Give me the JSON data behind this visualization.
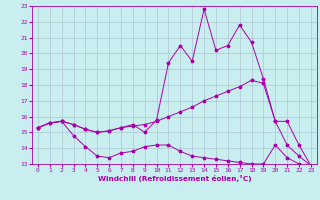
{
  "xlabel": "Windchill (Refroidissement éolien,°C)",
  "xlim": [
    -0.5,
    23.5
  ],
  "ylim": [
    13,
    23
  ],
  "yticks": [
    13,
    14,
    15,
    16,
    17,
    18,
    19,
    20,
    21,
    22,
    23
  ],
  "xticks": [
    0,
    1,
    2,
    3,
    4,
    5,
    6,
    7,
    8,
    9,
    10,
    11,
    12,
    13,
    14,
    15,
    16,
    17,
    18,
    19,
    20,
    21,
    22,
    23
  ],
  "bg_color": "#c8eef0",
  "line_color": "#aa00aa",
  "grid_color": "#aabbcc",
  "series": [
    {
      "x": [
        0,
        1,
        2,
        3,
        4,
        5,
        6,
        7,
        8,
        9,
        10,
        11,
        12,
        13,
        14,
        15,
        16,
        17,
        18,
        19,
        20,
        21,
        22,
        23
      ],
      "y": [
        15.3,
        15.6,
        15.7,
        14.8,
        14.1,
        13.5,
        13.4,
        13.7,
        13.8,
        14.1,
        14.2,
        14.2,
        13.8,
        13.5,
        13.4,
        13.3,
        13.2,
        13.1,
        13.0,
        13.0,
        14.2,
        13.4,
        13.0,
        12.9
      ]
    },
    {
      "x": [
        0,
        1,
        2,
        3,
        4,
        5,
        6,
        7,
        8,
        9,
        10,
        11,
        12,
        13,
        14,
        15,
        16,
        17,
        18,
        19,
        20,
        21,
        22,
        23
      ],
      "y": [
        15.3,
        15.6,
        15.7,
        15.5,
        15.2,
        15.0,
        15.1,
        15.3,
        15.4,
        15.5,
        15.7,
        16.0,
        16.3,
        16.6,
        17.0,
        17.3,
        17.6,
        17.9,
        18.3,
        18.1,
        15.7,
        14.2,
        13.5,
        12.9
      ]
    },
    {
      "x": [
        0,
        1,
        2,
        3,
        4,
        5,
        6,
        7,
        8,
        9,
        10,
        11,
        12,
        13,
        14,
        15,
        16,
        17,
        18,
        19,
        20,
        21,
        22,
        23
      ],
      "y": [
        15.3,
        15.6,
        15.7,
        15.5,
        15.2,
        15.0,
        15.1,
        15.3,
        15.5,
        15.0,
        15.8,
        19.4,
        20.5,
        19.5,
        22.8,
        20.2,
        20.5,
        21.8,
        20.7,
        18.4,
        15.7,
        15.7,
        14.2,
        12.9
      ]
    }
  ]
}
